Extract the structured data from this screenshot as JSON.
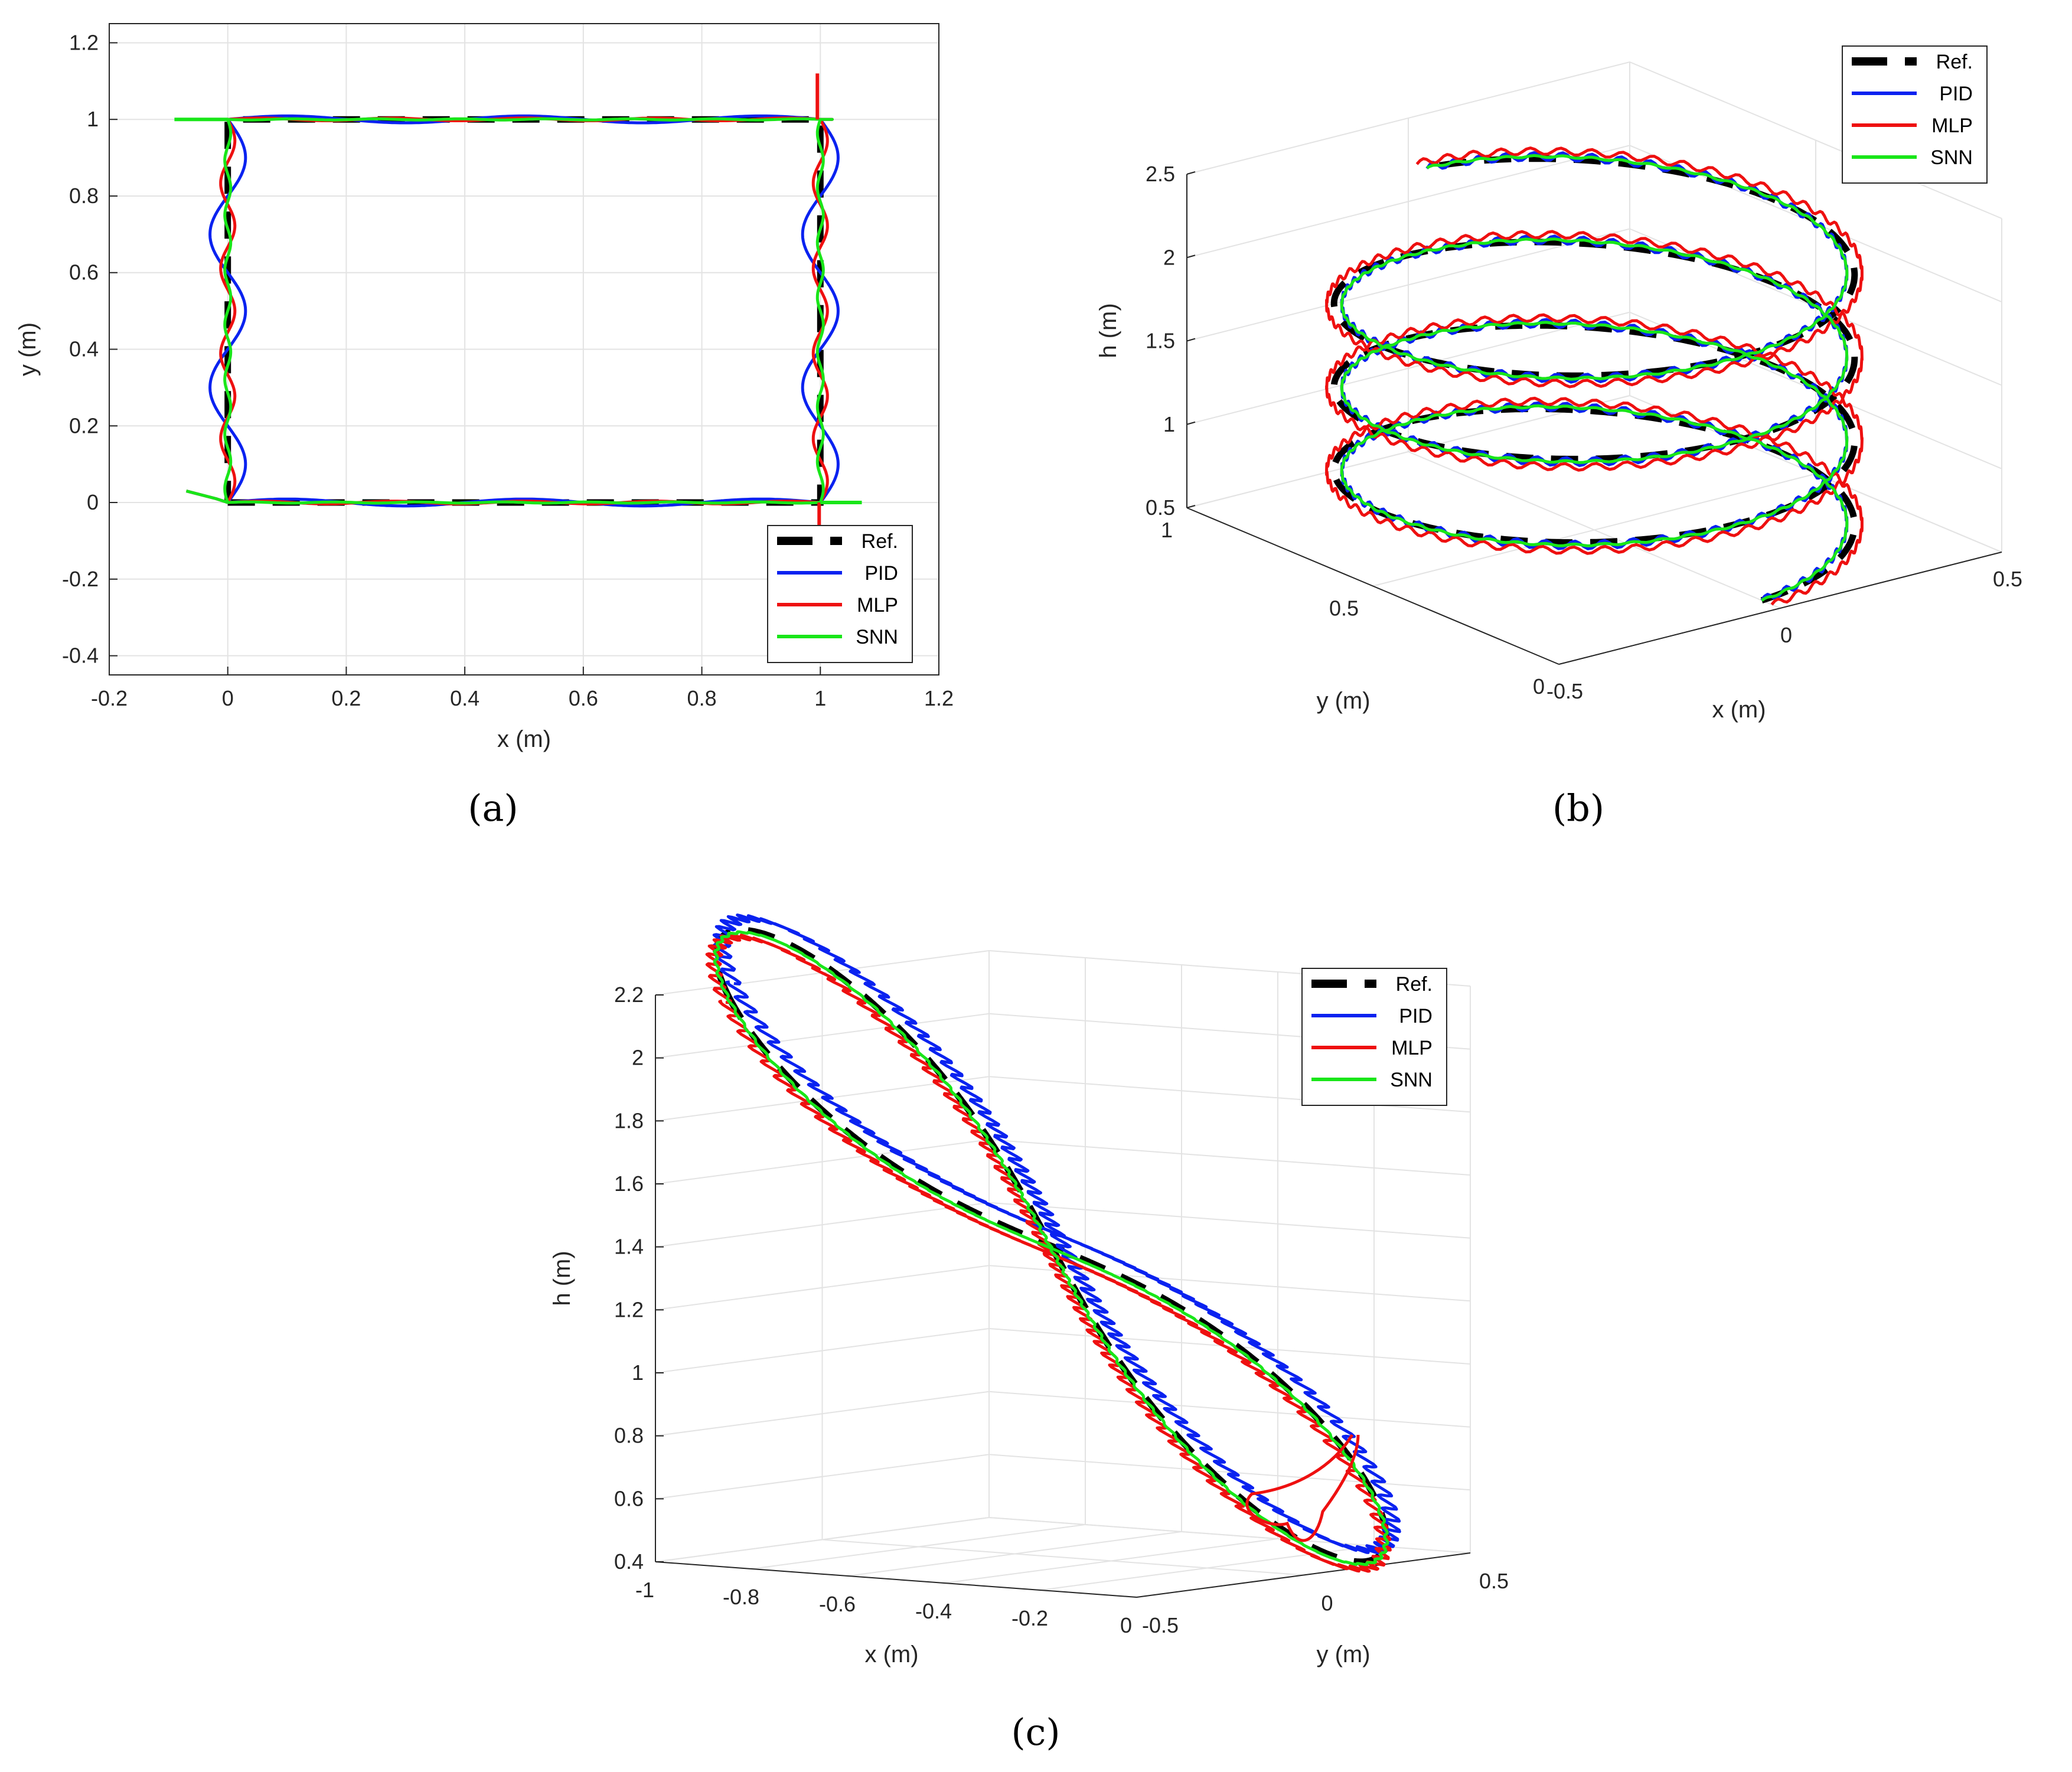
{
  "colors": {
    "ref": "#000000",
    "pid": "#0a22f0",
    "mlp": "#ee1010",
    "snn": "#19e619"
  },
  "chart_data": [
    {
      "panel": "(a)",
      "type": "line",
      "xlabel": "x (m)",
      "ylabel": "y (m)",
      "xlim": [
        -0.2,
        1.2
      ],
      "ylim": [
        -0.45,
        1.25
      ],
      "xticks": [
        "-0.2",
        "0",
        "0.2",
        "0.4",
        "0.6",
        "0.8",
        "1",
        "1.2"
      ],
      "yticks": [
        "-0.4",
        "-0.2",
        "0",
        "0.2",
        "0.4",
        "0.6",
        "0.8",
        "1",
        "1.2"
      ],
      "grid": true,
      "legend": {
        "position": "bottom-right",
        "entries": [
          "Ref.",
          "PID",
          "MLP",
          "SNN"
        ]
      },
      "series": [
        {
          "name": "Ref.",
          "style": "dashed",
          "x": [
            0,
            1,
            1,
            0,
            0
          ],
          "y": [
            0,
            0,
            1,
            1,
            0
          ]
        },
        {
          "name": "PID",
          "trajectory": "square",
          "amplitude": 0.03
        },
        {
          "name": "MLP",
          "trajectory": "square",
          "amplitude": 0.012
        },
        {
          "name": "SNN",
          "trajectory": "square",
          "amplitude": 0.005
        }
      ]
    },
    {
      "panel": "(b)",
      "type": "line",
      "xlabel": "x (m)",
      "ylabel": "y (m)",
      "zlabel": "h (m)",
      "xticks": [
        "-0.5",
        "0",
        "0.5"
      ],
      "yticks": [
        "0",
        "0.5",
        "1"
      ],
      "zticks": [
        "0.5",
        "1",
        "1.5",
        "2",
        "2.5"
      ],
      "zlim": [
        0.5,
        2.5
      ],
      "grid": true,
      "legend": {
        "position": "top-right",
        "entries": [
          "Ref.",
          "PID",
          "MLP",
          "SNN"
        ]
      },
      "reference": {
        "shape": "helix",
        "radius": 0.5,
        "center": [
          0,
          0.5
        ],
        "h_start": 0.5,
        "h_end": 2.25,
        "turns": 3.5
      },
      "series": [
        {
          "name": "Ref.",
          "style": "dashed"
        },
        {
          "name": "PID",
          "ripple": 0.05
        },
        {
          "name": "MLP",
          "ripple": 0.04
        },
        {
          "name": "SNN",
          "ripple": 0.01
        }
      ]
    },
    {
      "panel": "(c)",
      "type": "line",
      "xlabel": "x (m)",
      "ylabel": "y (m)",
      "zlabel": "h (m)",
      "xticks": [
        "-1",
        "-0.8",
        "-0.6",
        "-0.4",
        "-0.2",
        "0"
      ],
      "yticks": [
        "-0.5",
        "0",
        "0.5"
      ],
      "zticks": [
        "0.4",
        "0.6",
        "0.8",
        "1",
        "1.2",
        "1.4",
        "1.6",
        "1.8",
        "2",
        "2.2"
      ],
      "zlim": [
        0.4,
        2.2
      ],
      "grid": true,
      "legend": {
        "position": "top-right",
        "entries": [
          "Ref.",
          "PID",
          "MLP",
          "SNN"
        ]
      },
      "reference": {
        "shape": "figure-eight",
        "h_min": 0.6,
        "h_max": 2.1
      },
      "series": [
        {
          "name": "Ref.",
          "style": "dashed"
        },
        {
          "name": "PID",
          "ripple": 0.02
        },
        {
          "name": "MLP",
          "ripple": 0.02
        },
        {
          "name": "SNN",
          "ripple": 0.005
        }
      ]
    }
  ]
}
